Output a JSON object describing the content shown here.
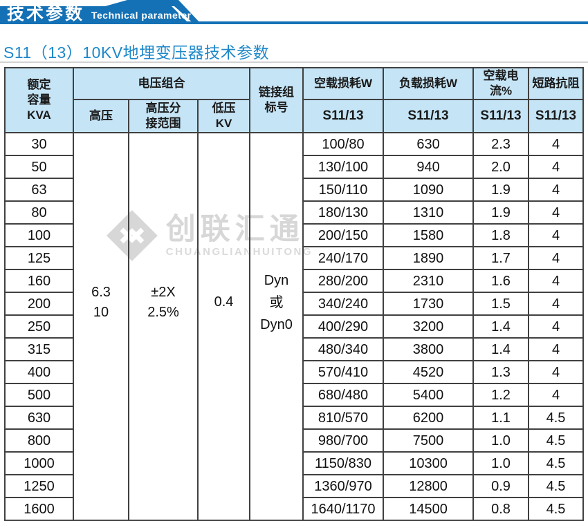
{
  "banner": {
    "title": "技术参数",
    "subtitle": "Technical parameter"
  },
  "page_title": "S11（13）10KV地埋变压器技术参数",
  "watermark": {
    "name": "创联汇通",
    "latin": "CHUANGLIANHUITONG"
  },
  "colors": {
    "banner_blue": "#1471b5",
    "title_blue": "#1e88c9",
    "header_bg": "#c5e4f6",
    "border": "#404040",
    "watermark_gray": "#d7d7d7"
  },
  "table": {
    "headers": {
      "capacity": "额定\n容量\nKVA",
      "voltage_group": "电压组合",
      "hv": "高压",
      "hv_tap": "高压分\n接范围",
      "lv": "低压\nKV",
      "connection": "链接组\n标号",
      "no_load_loss": "空载损耗W",
      "load_loss": "负载损耗W",
      "no_load_current": "空载电流%",
      "impedance": "短路抗阻",
      "model": "S11/13"
    },
    "merged": {
      "hv": "6.3\n10",
      "hv_tap": "±2X\n2.5%",
      "lv": "0.4",
      "connection": "Dyn\n或\nDyn0"
    },
    "rows": [
      {
        "kva": "30",
        "no_load": "100/80",
        "load": "630",
        "current": "2.3",
        "impedance": "4"
      },
      {
        "kva": "50",
        "no_load": "130/100",
        "load": "940",
        "current": "2.0",
        "impedance": "4"
      },
      {
        "kva": "63",
        "no_load": "150/110",
        "load": "1090",
        "current": "1.9",
        "impedance": "4"
      },
      {
        "kva": "80",
        "no_load": "180/130",
        "load": "1310",
        "current": "1.9",
        "impedance": "4"
      },
      {
        "kva": "100",
        "no_load": "200/150",
        "load": "1580",
        "current": "1.8",
        "impedance": "4"
      },
      {
        "kva": "125",
        "no_load": "240/170",
        "load": "1890",
        "current": "1.7",
        "impedance": "4"
      },
      {
        "kva": "160",
        "no_load": "280/200",
        "load": "2310",
        "current": "1.6",
        "impedance": "4"
      },
      {
        "kva": "200",
        "no_load": "340/240",
        "load": "1730",
        "current": "1.5",
        "impedance": "4"
      },
      {
        "kva": "250",
        "no_load": "400/290",
        "load": "3200",
        "current": "1.4",
        "impedance": "4"
      },
      {
        "kva": "315",
        "no_load": "480/340",
        "load": "3800",
        "current": "1.4",
        "impedance": "4"
      },
      {
        "kva": "400",
        "no_load": "570/410",
        "load": "4520",
        "current": "1.3",
        "impedance": "4"
      },
      {
        "kva": "500",
        "no_load": "680/480",
        "load": "5400",
        "current": "1.2",
        "impedance": "4"
      },
      {
        "kva": "630",
        "no_load": "810/570",
        "load": "6200",
        "current": "1.1",
        "impedance": "4.5"
      },
      {
        "kva": "800",
        "no_load": "980/700",
        "load": "7500",
        "current": "1.0",
        "impedance": "4.5"
      },
      {
        "kva": "1000",
        "no_load": "1150/830",
        "load": "10300",
        "current": "1.0",
        "impedance": "4.5"
      },
      {
        "kva": "1250",
        "no_load": "1360/970",
        "load": "12800",
        "current": "0.9",
        "impedance": "4.5"
      },
      {
        "kva": "1600",
        "no_load": "1640/1170",
        "load": "14500",
        "current": "0.8",
        "impedance": "4.5"
      }
    ]
  }
}
